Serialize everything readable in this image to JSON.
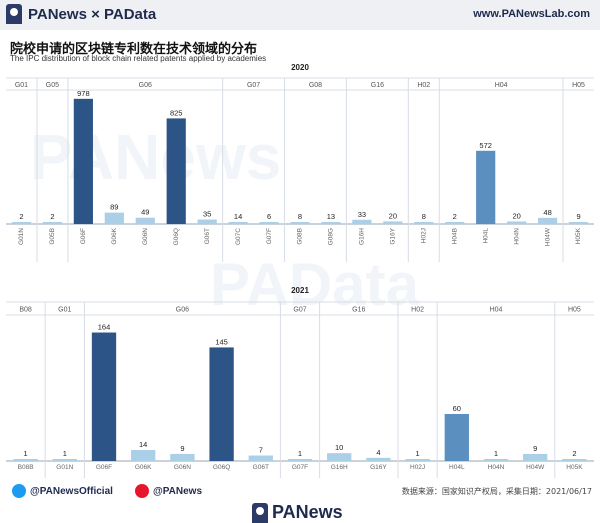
{
  "header": {
    "brand": "PANews × PAData",
    "site": "www.PANewsLab.com"
  },
  "titles": {
    "cn": "院校申请的区块链专利数在技术领域的分布",
    "en": "The IPC distribution of block chain related patents applied by academies"
  },
  "footer": {
    "twitter": "@PANewsOfficial",
    "weibo": "@PANews",
    "source": "数据来源：国家知识产权局，采集日期：2021/06/17",
    "bottom_brand": "PANews"
  },
  "watermarks": {
    "a": "PANews",
    "b": "PAData"
  },
  "colors": {
    "dark": "#2d5486",
    "mid": "#5b8fc0",
    "light": "#aacfe6",
    "grid": "#d7dde5"
  },
  "chart_data": [
    {
      "type": "bar",
      "title": "2020",
      "groups": [
        {
          "name": "G01",
          "categories": [
            "G01N"
          ]
        },
        {
          "name": "G05",
          "categories": [
            "G05B"
          ]
        },
        {
          "name": "G06",
          "categories": [
            "G06F",
            "G06K",
            "G06N",
            "G06Q",
            "G06T"
          ]
        },
        {
          "name": "G07",
          "categories": [
            "G07C",
            "G07F"
          ]
        },
        {
          "name": "G08",
          "categories": [
            "G08B",
            "G08G"
          ]
        },
        {
          "name": "G16",
          "categories": [
            "G16H",
            "G16Y"
          ]
        },
        {
          "name": "H02",
          "categories": [
            "H02J"
          ]
        },
        {
          "name": "H04",
          "categories": [
            "H04B",
            "H04L",
            "H04N",
            "H04W"
          ]
        },
        {
          "name": "H05",
          "categories": [
            "H05K"
          ]
        }
      ],
      "categories": [
        "G01N",
        "G05B",
        "G06F",
        "G06K",
        "G06N",
        "G06Q",
        "G06T",
        "G07C",
        "G07F",
        "G08B",
        "G08G",
        "G16H",
        "G16Y",
        "H02J",
        "H04B",
        "H04L",
        "H04N",
        "H04W",
        "H05K"
      ],
      "values": [
        2,
        2,
        978,
        89,
        49,
        825,
        35,
        14,
        6,
        8,
        13,
        33,
        20,
        8,
        2,
        572,
        20,
        48,
        9
      ],
      "ylim": [
        0,
        1000
      ]
    },
    {
      "type": "bar",
      "title": "2021",
      "groups": [
        {
          "name": "B08",
          "categories": [
            "B08B"
          ]
        },
        {
          "name": "G01",
          "categories": [
            "G01N"
          ]
        },
        {
          "name": "G06",
          "categories": [
            "G06F",
            "G06K",
            "G06N",
            "G06Q",
            "G06T"
          ]
        },
        {
          "name": "G07",
          "categories": [
            "G07F"
          ]
        },
        {
          "name": "G16",
          "categories": [
            "G16H",
            "G16Y"
          ]
        },
        {
          "name": "H02",
          "categories": [
            "H02J"
          ]
        },
        {
          "name": "H04",
          "categories": [
            "H04L",
            "H04N",
            "H04W"
          ]
        },
        {
          "name": "H05",
          "categories": [
            "H05K"
          ]
        }
      ],
      "categories": [
        "B08B",
        "G01N",
        "G06F",
        "G06K",
        "G06N",
        "G06Q",
        "G06T",
        "G07F",
        "G16H",
        "G16Y",
        "H02J",
        "H04L",
        "H04N",
        "H04W",
        "H05K"
      ],
      "values": [
        1,
        1,
        164,
        14,
        9,
        145,
        7,
        1,
        10,
        4,
        1,
        60,
        1,
        9,
        2
      ],
      "ylim": [
        0,
        180
      ]
    }
  ]
}
